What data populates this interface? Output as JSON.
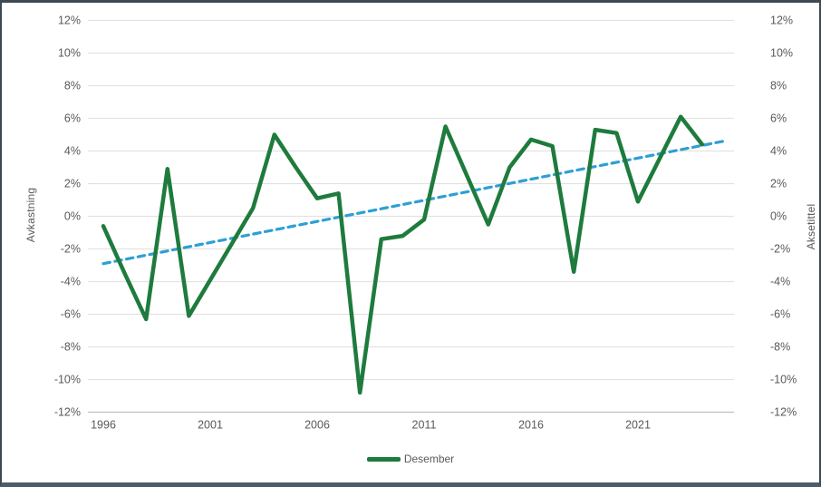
{
  "window": {
    "background": "#ffffff",
    "border_color": "#42505c"
  },
  "chart": {
    "left_axis_title": "Avkastning",
    "right_axis_title": "Aksetittel",
    "legend": {
      "label": "Desember",
      "color": "#1e7b3d"
    }
  },
  "chart_data": {
    "type": "line",
    "title": "",
    "x": [
      1996,
      1997,
      1998,
      1999,
      2000,
      2001,
      2002,
      2003,
      2004,
      2005,
      2006,
      2007,
      2008,
      2009,
      2010,
      2011,
      2012,
      2013,
      2014,
      2015,
      2016,
      2017,
      2018,
      2019,
      2020,
      2021,
      2022,
      2023,
      2024
    ],
    "series": [
      {
        "name": "Desember",
        "color": "#1e7b3d",
        "values": [
          -0.6,
          -3.5,
          -6.3,
          2.9,
          -6.1,
          -3.9,
          -1.7,
          0.5,
          5.0,
          3.0,
          1.1,
          1.4,
          -10.8,
          -1.4,
          -1.2,
          -0.2,
          5.5,
          2.5,
          -0.5,
          3.0,
          4.7,
          4.3,
          -3.4,
          5.3,
          5.1,
          0.9,
          3.5,
          6.1,
          4.4
        ]
      }
    ],
    "trendline": {
      "name": "linear-trend",
      "color": "#2e9fd4",
      "style": "dashed",
      "x1": 1996,
      "y1": -2.9,
      "x2": 2025,
      "y2": 4.6
    },
    "xlabel": "",
    "ylabel": "Avkastning",
    "ylabel_right": "Aksetittel",
    "ylim": [
      -12,
      12
    ],
    "y_tick_step": 2,
    "y_tick_labels": [
      "12%",
      "10%",
      "8%",
      "6%",
      "4%",
      "2%",
      "0%",
      "-2%",
      "-4%",
      "-6%",
      "-8%",
      "-10%",
      "-12%"
    ],
    "x_tick_labels": [
      "1996",
      "2001",
      "2006",
      "2011",
      "2016",
      "2021"
    ],
    "grid": true,
    "gridline_color": "#e2e2e2",
    "axisline_color": "#bfbfbf",
    "tick_label_color": "#595959",
    "legend_position": "bottom",
    "legend_entries": [
      "Desember"
    ]
  }
}
